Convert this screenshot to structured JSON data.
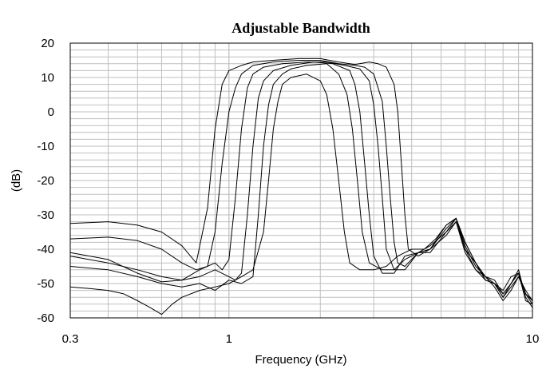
{
  "chart_data": {
    "type": "line",
    "title": "Adjustable Bandwidth",
    "xlabel": "Frequency (GHz)",
    "ylabel": "(dB)",
    "x_scale": "log",
    "xlim": [
      0.3,
      10
    ],
    "ylim": [
      -60,
      20
    ],
    "x_ticks": [
      0.3,
      1,
      10
    ],
    "x_tick_labels": [
      "0.3",
      "1",
      "10"
    ],
    "y_ticks": [
      20,
      10,
      0,
      -10,
      -20,
      -30,
      -40,
      -50,
      -60
    ],
    "y_tick_labels": [
      "20",
      "10",
      "0",
      "-10",
      "-20",
      "-30",
      "-40",
      "-50",
      "-60"
    ],
    "grid": true,
    "line_color": "#000000",
    "grid_color": "#bfbfbf",
    "series": [
      {
        "x": [
          0.3,
          0.4,
          0.5,
          0.6,
          0.7,
          0.78,
          0.85,
          0.9,
          0.95,
          1.0,
          1.1,
          1.2,
          1.4,
          1.7,
          2.0,
          2.3,
          2.6,
          2.9,
          3.1,
          3.3,
          3.5,
          3.6,
          3.7,
          3.8,
          3.9,
          4.2,
          4.6,
          5.2,
          5.6,
          6.0,
          6.5,
          7.0,
          7.5,
          8.0,
          8.5,
          9.0,
          9.5,
          10.0
        ],
        "y": [
          -32.5,
          -32,
          -33,
          -35,
          -39,
          -44,
          -28,
          -5,
          8,
          12,
          13.5,
          14.5,
          15,
          15.5,
          15.5,
          14.5,
          13.8,
          14.5,
          14,
          13,
          8,
          0,
          -15,
          -30,
          -40,
          -42,
          -40,
          -33,
          -31,
          -38,
          -44,
          -49,
          -50,
          -52,
          -48,
          -47,
          -55,
          -56
        ]
      },
      {
        "x": [
          0.3,
          0.4,
          0.5,
          0.6,
          0.7,
          0.78,
          0.85,
          0.9,
          0.95,
          1.0,
          1.05,
          1.1,
          1.2,
          1.4,
          1.7,
          2.0,
          2.3,
          2.6,
          2.8,
          3.0,
          3.2,
          3.3,
          3.4,
          3.5,
          3.6,
          3.8,
          4.2,
          4.6,
          5.2,
          5.6,
          6.0,
          6.5,
          7.0,
          7.5,
          8.0,
          8.5,
          9.0,
          9.5,
          10.0
        ],
        "y": [
          -37,
          -36.5,
          -37.5,
          -40,
          -44,
          -46,
          -45,
          -35,
          -15,
          0,
          7,
          11,
          13.5,
          14.5,
          15,
          15,
          14,
          13.5,
          13,
          11,
          3,
          -10,
          -25,
          -38,
          -44,
          -45,
          -41,
          -40,
          -34,
          -31,
          -39,
          -45,
          -48,
          -49,
          -53,
          -50,
          -47,
          -53,
          -55
        ]
      },
      {
        "x": [
          0.3,
          0.4,
          0.5,
          0.6,
          0.7,
          0.8,
          0.9,
          0.95,
          1.0,
          1.05,
          1.1,
          1.15,
          1.2,
          1.3,
          1.5,
          1.8,
          2.1,
          2.4,
          2.7,
          2.9,
          3.0,
          3.1,
          3.2,
          3.3,
          3.5,
          3.8,
          4.2,
          4.6,
          5.2,
          5.6,
          6.0,
          6.5,
          7.0,
          7.5,
          8.0,
          8.5,
          9.0,
          9.5,
          10.0
        ],
        "y": [
          -41,
          -43,
          -47,
          -49.5,
          -49,
          -46,
          -44,
          -46,
          -43,
          -25,
          -5,
          7,
          11,
          13,
          14,
          14.5,
          14.5,
          13.5,
          12.5,
          9,
          2,
          -10,
          -25,
          -40,
          -46,
          -46,
          -41,
          -41,
          -35,
          -31,
          -40,
          -44,
          -49,
          -50,
          -54,
          -51,
          -48,
          -52,
          -55
        ]
      },
      {
        "x": [
          0.3,
          0.4,
          0.5,
          0.6,
          0.7,
          0.8,
          0.9,
          1.0,
          1.05,
          1.1,
          1.15,
          1.2,
          1.25,
          1.3,
          1.4,
          1.6,
          1.9,
          2.2,
          2.5,
          2.6,
          2.7,
          2.8,
          2.9,
          3.0,
          3.2,
          3.5,
          3.8,
          4.2,
          4.6,
          5.2,
          5.6,
          6.0,
          6.5,
          7.0,
          7.5,
          8.0,
          8.5,
          9.0,
          9.5,
          10.0
        ],
        "y": [
          -42,
          -44,
          -46,
          -48,
          -49,
          -48,
          -46,
          -48,
          -49,
          -47,
          -30,
          -10,
          4,
          9,
          12,
          13.5,
          14.5,
          14,
          12,
          8,
          0,
          -15,
          -30,
          -42,
          -47,
          -47,
          -42,
          -41,
          -39,
          -35,
          -32,
          -40,
          -46,
          -48,
          -51,
          -55,
          -52,
          -48,
          -53,
          -55
        ]
      },
      {
        "x": [
          0.3,
          0.4,
          0.5,
          0.6,
          0.7,
          0.8,
          0.9,
          1.0,
          1.1,
          1.2,
          1.25,
          1.3,
          1.35,
          1.4,
          1.5,
          1.6,
          1.8,
          2.1,
          2.3,
          2.45,
          2.55,
          2.65,
          2.75,
          2.9,
          3.2,
          3.5,
          3.8,
          4.2,
          4.6,
          5.2,
          5.6,
          6.0,
          6.5,
          7.0,
          7.5,
          8.0,
          8.5,
          9.0,
          9.5,
          10.0
        ],
        "y": [
          -45,
          -46,
          -48,
          -50,
          -51,
          -50,
          -52,
          -49,
          -50,
          -48,
          -30,
          -10,
          2,
          8,
          11,
          12.5,
          13.5,
          14,
          11,
          5,
          -5,
          -20,
          -35,
          -44,
          -46,
          -46,
          -43,
          -41,
          -40,
          -36,
          -32,
          -41,
          -46,
          -49,
          -50,
          -54,
          -50,
          -47,
          -53,
          -56
        ]
      },
      {
        "x": [
          0.3,
          0.35,
          0.4,
          0.45,
          0.5,
          0.55,
          0.6,
          0.65,
          0.7,
          0.8,
          0.9,
          1.0,
          1.1,
          1.2,
          1.3,
          1.35,
          1.4,
          1.45,
          1.5,
          1.6,
          1.8,
          2.0,
          2.1,
          2.2,
          2.3,
          2.4,
          2.5,
          2.7,
          3.0,
          3.3,
          3.6,
          4.0,
          4.4,
          4.8,
          5.2,
          5.6,
          6.0,
          6.5,
          7.0,
          7.5,
          8.0,
          8.5,
          9.0,
          9.5,
          10.0
        ],
        "y": [
          -51,
          -51.5,
          -52,
          -53,
          -55,
          -57,
          -59,
          -56,
          -54,
          -52,
          -51,
          -50,
          -48,
          -46,
          -35,
          -20,
          -5,
          3,
          8,
          10,
          11,
          9,
          5,
          -5,
          -20,
          -35,
          -44,
          -46,
          -46,
          -45,
          -42,
          -40,
          -40,
          -37,
          -33,
          -31,
          -38,
          -44,
          -48,
          -50,
          -53,
          -50,
          -46,
          -54,
          -57
        ]
      }
    ]
  }
}
